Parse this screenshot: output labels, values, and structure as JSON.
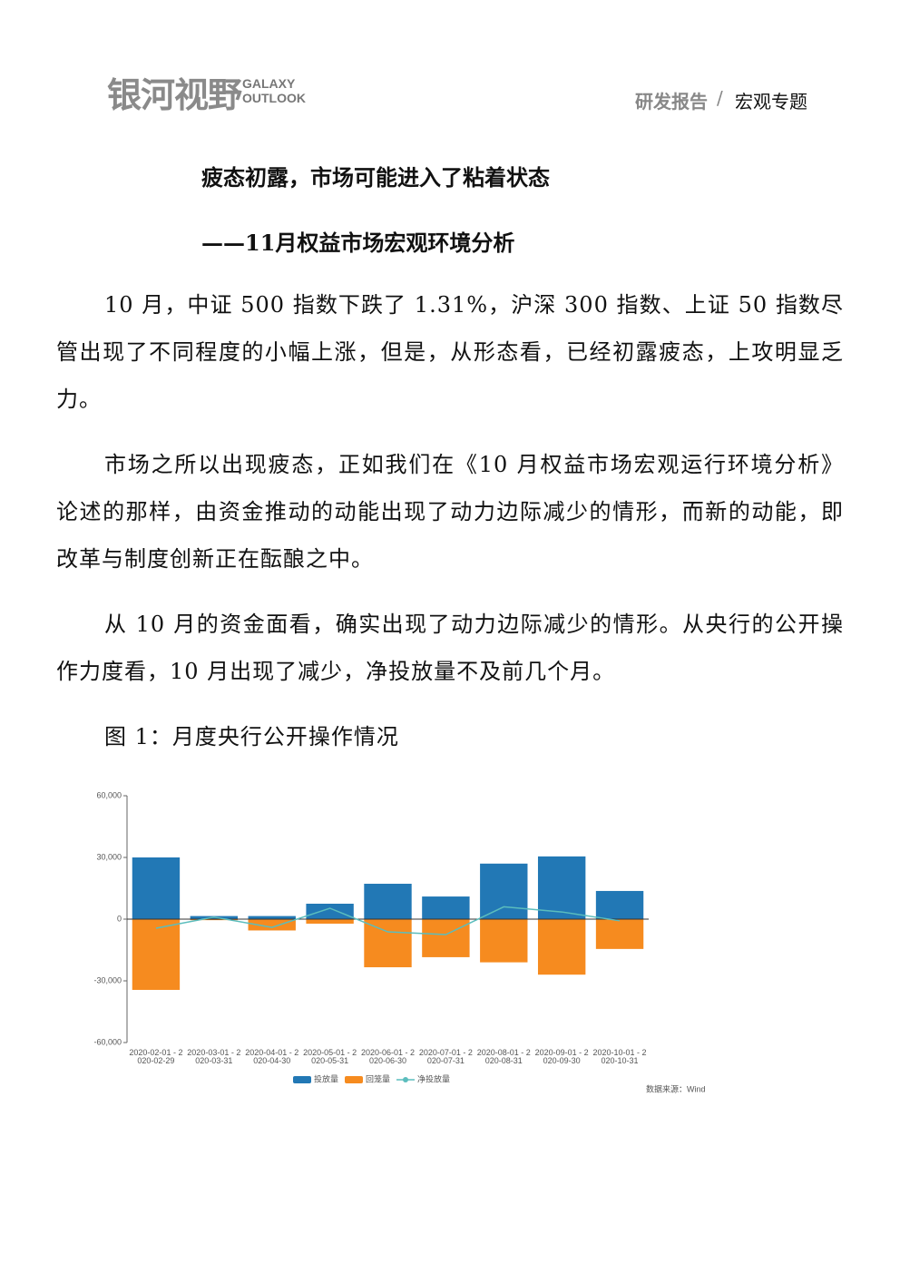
{
  "header": {
    "logo": "银河视野",
    "logo_en_1": "GALAXY",
    "logo_en_2": "OUTLOOK",
    "section": "研发报告",
    "separator": "/",
    "topic": "宏观专题"
  },
  "title": "疲态初露，市场可能进入了粘着状态",
  "subtitle": "——11月权益市场宏观环境分析",
  "paragraphs": [
    "10 月，中证 500 指数下跌了 1.31%，沪深 300 指数、上证 50 指数尽管出现了不同程度的小幅上涨，但是，从形态看，已经初露疲态，上攻明显乏力。",
    "市场之所以出现疲态，正如我们在《10 月权益市场宏观运行环境分析》论述的那样，由资金推动的动能出现了动力边际减少的情形，而新的动能，即改革与制度创新正在酝酿之中。",
    "从 10 月的资金面看，确实出现了动力边际减少的情形。从央行的公开操作力度看，10 月出现了减少，净投放量不及前几个月。"
  ],
  "figure_caption": "图 1：月度央行公开操作情况",
  "chart_data": {
    "type": "bar",
    "categories": [
      "2020-02-01 - 2020-02-29",
      "2020-03-01 - 2020-03-31",
      "2020-04-01 - 2020-04-30",
      "2020-05-01 - 2020-05-31",
      "2020-06-01 - 2020-06-30",
      "2020-07-01 - 2020-07-31",
      "2020-08-01 - 2020-08-31",
      "2020-09-01 - 2020-09-30",
      "2020-10-01 - 2020-10-31"
    ],
    "series": [
      {
        "name": "投放量",
        "type": "bar",
        "color": "#2278b5",
        "values": [
          30000,
          1500,
          1500,
          7500,
          17200,
          11000,
          27000,
          30500,
          13700
        ]
      },
      {
        "name": "回笼量",
        "type": "bar",
        "color": "#f68b1f",
        "values": [
          -34400,
          -500,
          -5500,
          -2200,
          -23400,
          -18500,
          -21000,
          -27000,
          -14500
        ]
      },
      {
        "name": "净投放量",
        "type": "line",
        "color": "#5bbdbd",
        "values": [
          -4400,
          1000,
          -4000,
          5300,
          -6200,
          -7500,
          6000,
          3500,
          -800
        ]
      }
    ],
    "ylim": [
      -60000,
      60000
    ],
    "yticks": [
      {
        "value": -60000,
        "label": "-60,000"
      },
      {
        "value": -30000,
        "label": "-30,000"
      },
      0,
      {
        "value": 30000,
        "label": "30,000"
      },
      {
        "value": 60000,
        "label": "60,000"
      }
    ],
    "source": "数据来源：Wind"
  }
}
